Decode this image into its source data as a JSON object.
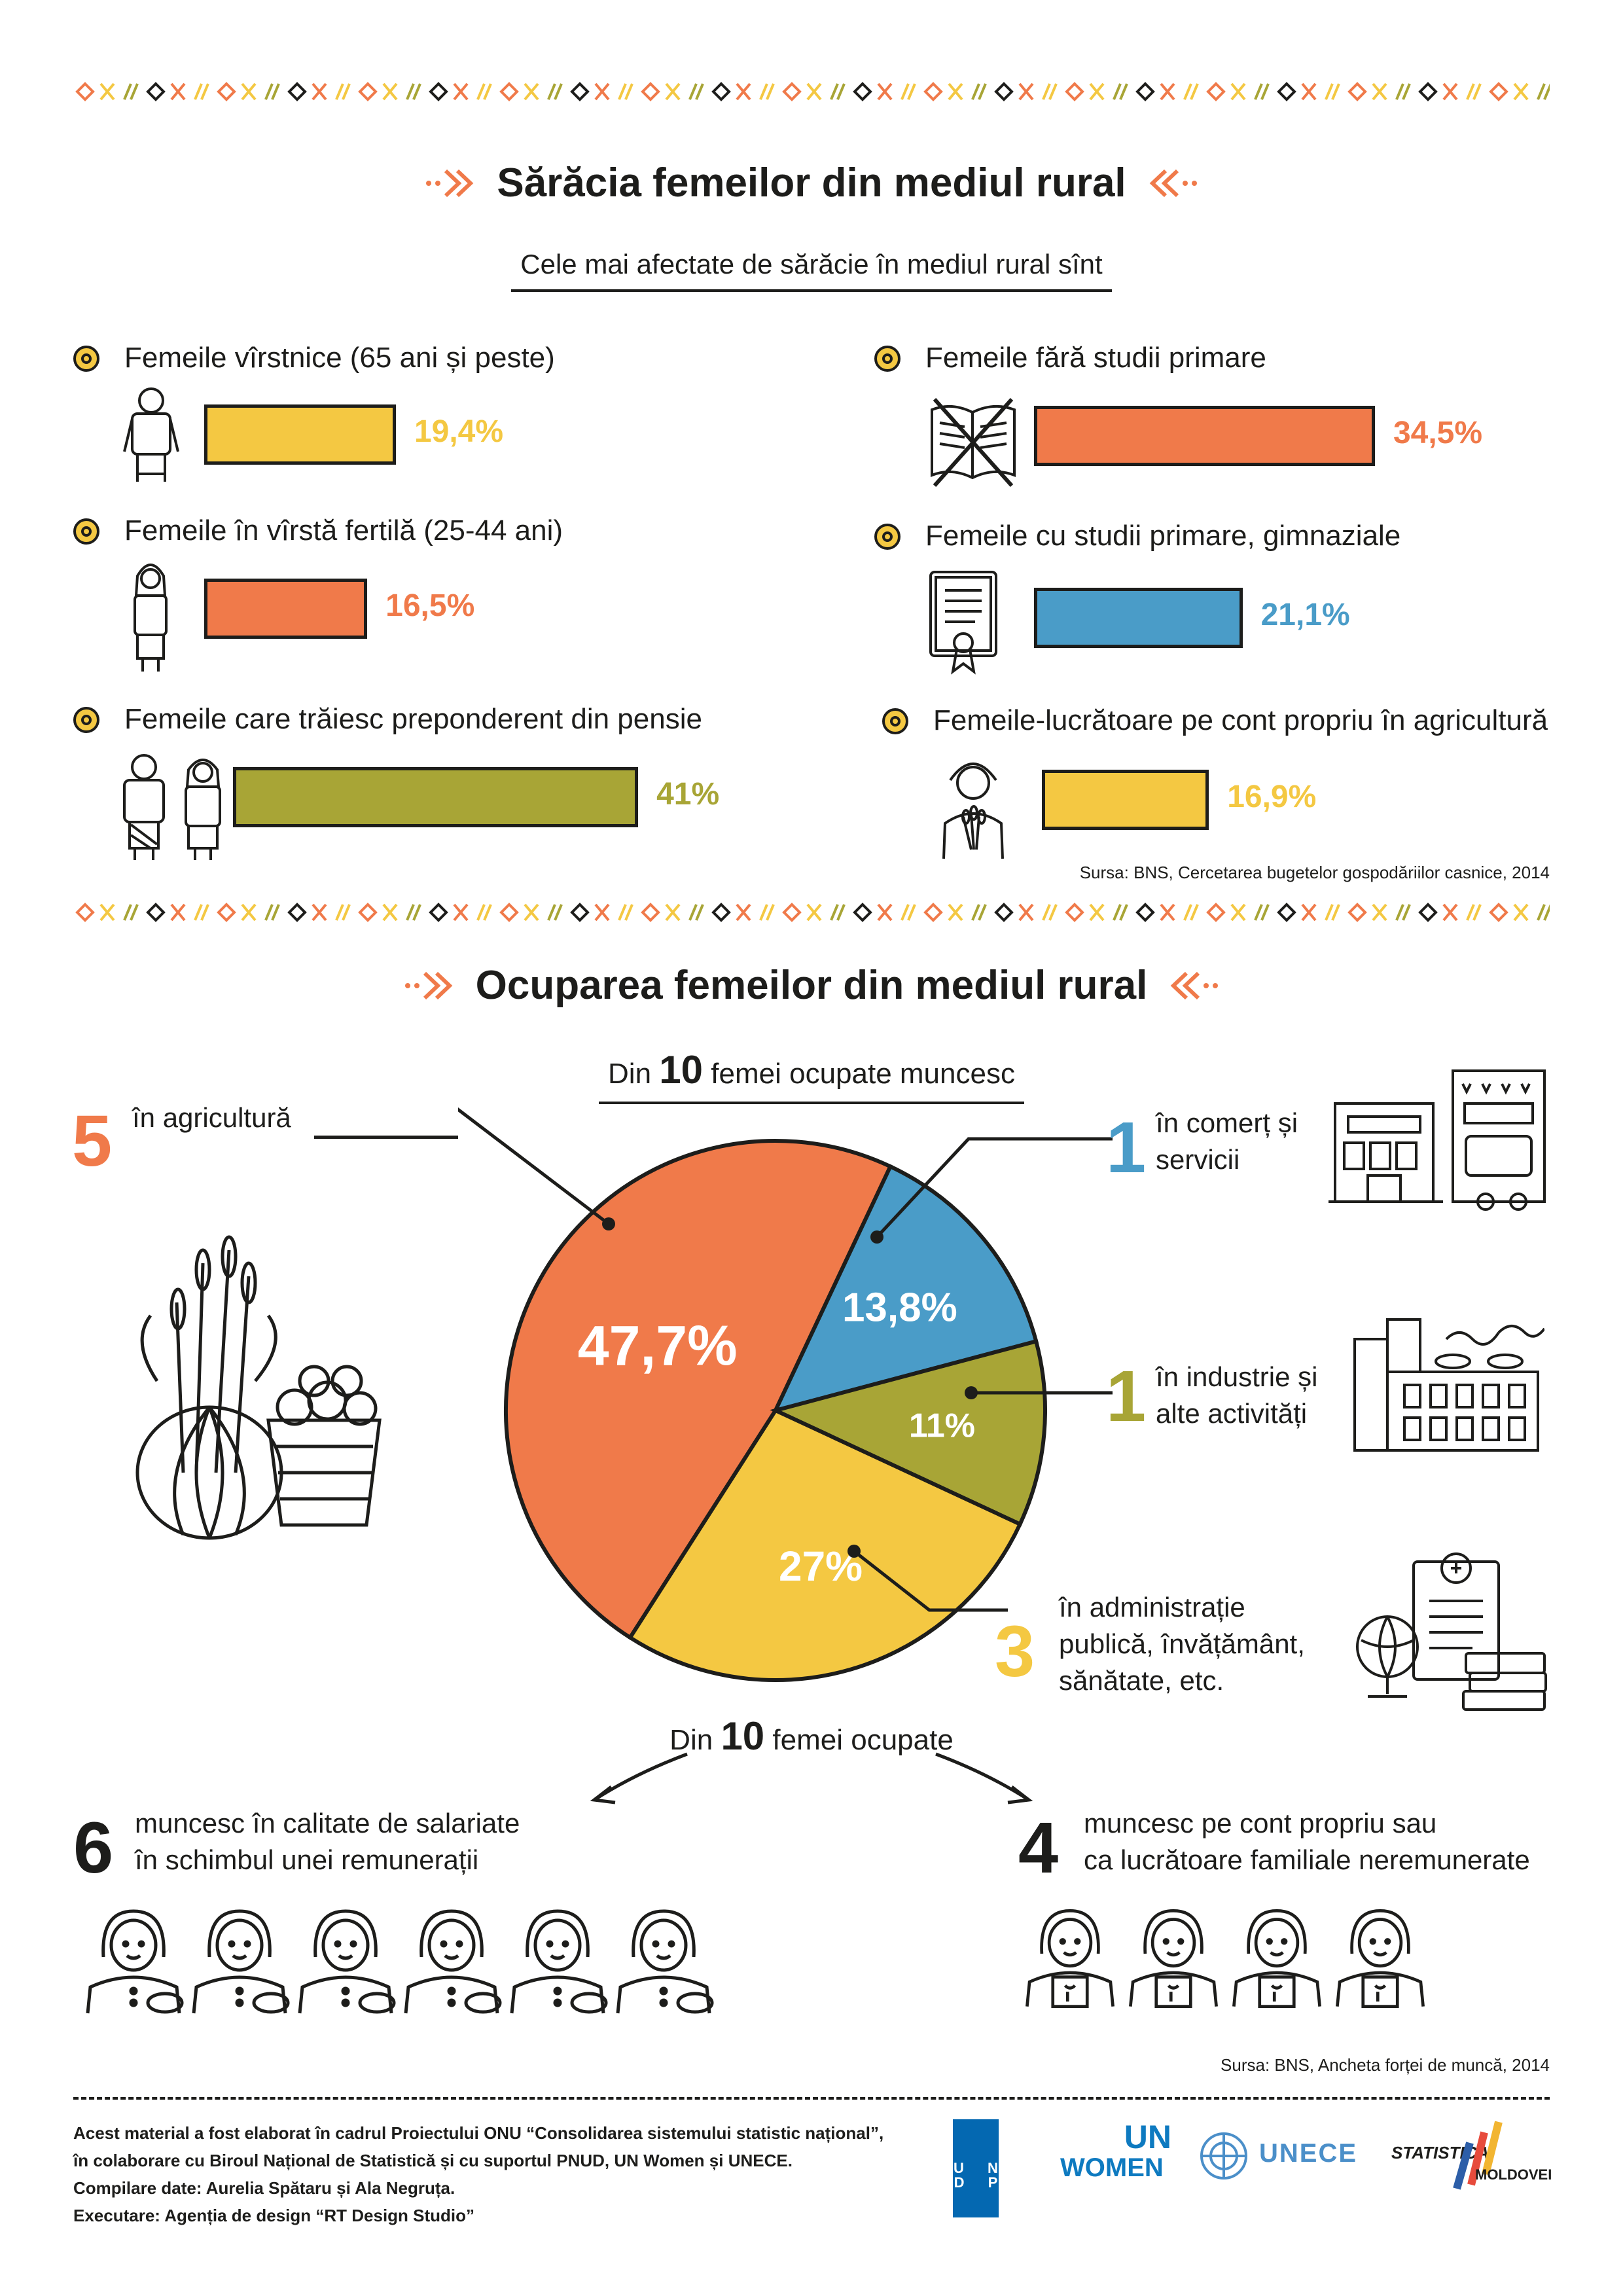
{
  "section1": {
    "title": "Sărăcia femeilor din mediul rural",
    "subtitle": "Cele mai afectate de sărăcie în mediul rural sînt",
    "source": "Sursa: BNS, Cercetarea bugetelor gospodăriilor casnice, 2014"
  },
  "section2": {
    "title": "Ocuparea femeilor din mediul rural",
    "pie_header_pre": "Din",
    "pie_header_num": "10",
    "pie_header_post": "femei ocupate muncesc",
    "items": [
      {
        "count": "5",
        "text": "în agricultură"
      },
      {
        "count": "1",
        "text_line1": "în comerț și",
        "text_line2": "servicii"
      },
      {
        "count": "1",
        "text_line1": "în industrie și",
        "text_line2": "alte activități"
      },
      {
        "count": "3",
        "text_line1": "în administrație",
        "text_line2": "publică, învățământ,",
        "text_line3": "sănătate, etc."
      }
    ],
    "employment_header_pre": "Din",
    "employment_header_num": "10",
    "employment_header_post": "femei ocupate",
    "employees": {
      "count": "6",
      "line1": "muncesc în calitate de salariate",
      "line2": "în schimbul unei remunerații"
    },
    "self_employed": {
      "count": "4",
      "line1": "muncesc pe cont propriu sau",
      "line2": "ca lucrătoare familiale neremunerate"
    },
    "source": "Sursa: BNS, Ancheta forței de muncă, 2014"
  },
  "footer": {
    "line1": "Acest material a fost elaborat în cadrul Proiectului ONU “Consolidarea sistemului statistic național”,",
    "line2": "în colaborare cu Biroul Național de Statistică și cu suportul PNUD, UN Women și UNECE.",
    "line3": "Compilare date: Aurelia Spătaru și Ala Negruța.",
    "line4": "Executare: Agenția de design “RT Design Studio”",
    "logos": {
      "undp": "U N D P",
      "un_women_1": "UN",
      "un_women_2": "WOMEN",
      "unece": "UNECE",
      "statistica_1": "STATISTICA",
      "statistica_2": "MOLDOVEI"
    }
  },
  "colors": {
    "yellow": "#f4c842",
    "orange": "#f07a4a",
    "blue": "#4a9cc8",
    "olive": "#a8a536",
    "dark": "#1d1d1b"
  },
  "chart_data": [
    {
      "type": "bar",
      "title": "",
      "categories": [
        "Femeile vîrstnice (65 ani și peste)",
        "Femeile în vîrstă fertilă (25-44 ani)",
        "Femeile care trăiesc preponderent din pensie",
        "Femeile fără studii primare",
        "Femeile cu studii primare, gimnaziale",
        "Femeile-lucrătoare pe cont propriu în agricultură"
      ],
      "values": [
        19.4,
        16.5,
        41,
        34.5,
        21.1,
        16.9
      ],
      "value_labels": [
        "19,4%",
        "16,5%",
        "41%",
        "34,5%",
        "21,1%",
        "16,9%"
      ],
      "colors": [
        "#f4c842",
        "#f07a4a",
        "#a8a536",
        "#f07a4a",
        "#4a9cc8",
        "#f4c842"
      ]
    },
    {
      "type": "pie",
      "categories": [
        "în agricultură",
        "în comerț și servicii",
        "în industrie și alte activități",
        "în administrație publică, învățământ, sănătate, etc."
      ],
      "values": [
        47.7,
        13.8,
        11,
        27
      ],
      "value_labels": [
        "47,7%",
        "13,8%",
        "11%",
        "27%"
      ],
      "colors": [
        "#f07a4a",
        "#4a9cc8",
        "#a8a536",
        "#f4c842"
      ]
    }
  ]
}
